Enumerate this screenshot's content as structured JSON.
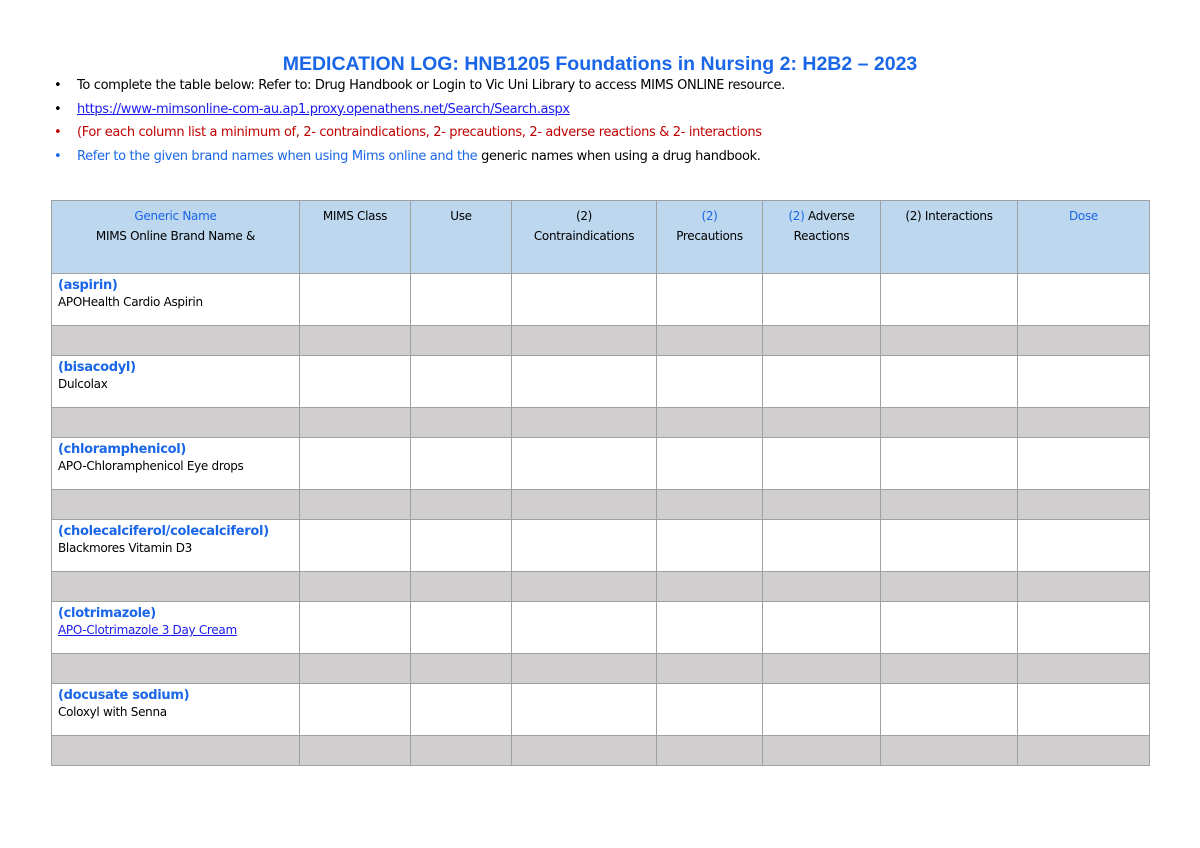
{
  "title": "MEDICATION LOG: HNB1205 Foundations in Nursing 2: H2B2 – 2023",
  "bullets": {
    "b1_a": "To complete the table below: Refer to: ",
    "b1_b": "Drug Handbook or Login to Vic Uni Library to access MIMS ONLINE resource.",
    "b2": "https://www-mimsonline-com-au.ap1.proxy.openathens.net/Search/Search.aspx",
    "b3": "(For each column list a minimum of, 2- contraindications, 2- precautions, 2- adverse reactions & 2- interactions",
    "b4_a": "Refer to the given brand names when using Mims online and the ",
    "b4_b": "generic names when using a drug handbook."
  },
  "headers": {
    "generic": "Generic Name",
    "brand": "MIMS Online Brand Name &",
    "class": "MIMS Class",
    "use": "Use",
    "contra_n": "(2)",
    "contra": "Contraindications",
    "prec_n": "(2)",
    "prec": "Precautions",
    "adv_n": "(2)",
    "adv_a": " Adverse",
    "adv_b": "Reactions",
    "inter": "(2) Interactions",
    "dose": "Dose"
  },
  "drugs": [
    {
      "generic": "(aspirin)",
      "brand": "APOHealth Cardio Aspirin",
      "link": false
    },
    {
      "generic": "(bisacodyl)",
      "brand": "Dulcolax",
      "link": false
    },
    {
      "generic": "(chloramphenicol)",
      "brand": "APO-Chloramphenicol Eye drops",
      "link": false
    },
    {
      "generic": "(cholecalciferol/colecalciferol)",
      "brand": "Blackmores Vitamin D3",
      "link": false
    },
    {
      "generic": "(clotrimazole)",
      "brand": "APO-Clotrimazole 3 Day Cream",
      "link": true
    },
    {
      "generic": "(docusate sodium)",
      "brand": "Coloxyl with Senna",
      "link": false
    }
  ],
  "colors": {
    "accent": "#1a66e8",
    "warning": "#c00000",
    "header_bg": "#bdd7ee",
    "row_grey": "#d0cece"
  }
}
